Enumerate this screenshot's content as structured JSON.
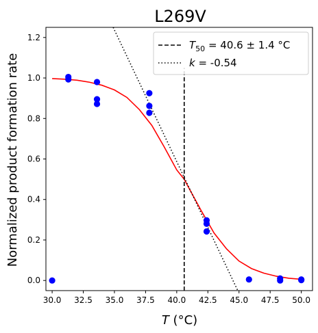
{
  "chart_data": {
    "type": "scatter",
    "title": "L269V",
    "xlabel": "T (°C)",
    "ylabel": "Normalized product formation rate",
    "xlim": [
      29.5,
      50.9
    ],
    "ylim": [
      -0.05,
      1.25
    ],
    "x_ticks": [
      30.0,
      32.5,
      35.0,
      37.5,
      40.0,
      42.5,
      45.0,
      47.5,
      50.0
    ],
    "x_tick_labels": [
      "30.0",
      "32.5",
      "35.0",
      "37.5",
      "40.0",
      "42.5",
      "45.0",
      "47.5",
      "50.0"
    ],
    "y_ticks": [
      0.0,
      0.2,
      0.4,
      0.6,
      0.8,
      1.0,
      1.2
    ],
    "y_tick_labels": [
      "0.0",
      "0.2",
      "0.4",
      "0.6",
      "0.8",
      "1.0",
      "1.2"
    ],
    "grid": false,
    "legend_position": "top-right",
    "series": [
      {
        "type": "scatter",
        "color": "#0000ff",
        "points": [
          [
            30.0,
            0.0
          ],
          [
            31.3,
            1.005
          ],
          [
            31.3,
            0.993
          ],
          [
            33.6,
            0.98
          ],
          [
            33.6,
            0.895
          ],
          [
            33.6,
            0.872
          ],
          [
            37.8,
            0.925
          ],
          [
            37.8,
            0.862
          ],
          [
            37.8,
            0.828
          ],
          [
            42.4,
            0.297
          ],
          [
            42.4,
            0.28
          ],
          [
            42.4,
            0.242
          ],
          [
            45.8,
            0.005
          ],
          [
            48.3,
            0.01
          ],
          [
            48.3,
            0.0
          ],
          [
            50.0,
            0.005
          ],
          [
            50.0,
            0.002
          ]
        ]
      },
      {
        "type": "line",
        "color": "#ff0000",
        "x": [
          30.0,
          31.0,
          32.0,
          33.0,
          34.0,
          35.0,
          36.0,
          37.0,
          38.0,
          39.0,
          40.0,
          40.6,
          41.0,
          42.0,
          43.0,
          44.0,
          45.0,
          46.0,
          47.0,
          48.0,
          49.0,
          50.0
        ],
        "y": [
          0.997,
          0.994,
          0.989,
          0.979,
          0.964,
          0.941,
          0.904,
          0.844,
          0.766,
          0.659,
          0.546,
          0.5,
          0.454,
          0.341,
          0.234,
          0.156,
          0.096,
          0.059,
          0.036,
          0.021,
          0.011,
          0.006
        ]
      }
    ],
    "annotations": {
      "t50_line": {
        "x": 40.6,
        "y_range": [
          -0.05,
          1.05
        ],
        "style": "dashed",
        "color": "#000000"
      },
      "slope_line": {
        "x": [
          34.9,
          44.9
        ],
        "y": [
          1.25,
          -0.05
        ],
        "style": "dotted",
        "color": "#000000"
      }
    },
    "legend": [
      {
        "style": "dashed",
        "label_prefix": "T",
        "label_subscript": "50",
        "label_suffix": " = 40.6 ± 1.4 °C"
      },
      {
        "style": "dotted",
        "label_prefix": "k",
        "label_subscript": "",
        "label_suffix": " = -0.54"
      }
    ]
  }
}
